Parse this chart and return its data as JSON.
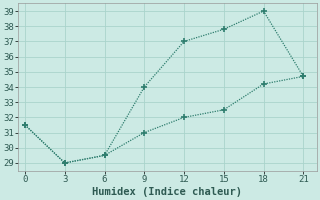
{
  "line1_x": [
    0,
    3,
    6,
    9,
    12,
    15,
    18,
    21
  ],
  "line1_y": [
    31.5,
    29.0,
    29.5,
    34.0,
    37.0,
    37.8,
    39.0,
    34.7
  ],
  "line2_x": [
    0,
    3,
    6,
    9,
    12,
    15,
    18,
    21
  ],
  "line2_y": [
    31.5,
    29.0,
    29.5,
    31.0,
    32.0,
    32.5,
    34.2,
    34.7
  ],
  "line_color": "#2e7d6e",
  "marker": "+",
  "marker_size": 4,
  "marker_lw": 1.2,
  "linewidth": 0.9,
  "xlabel": "Humidex (Indice chaleur)",
  "xlim": [
    -0.5,
    22
  ],
  "ylim": [
    28.5,
    39.5
  ],
  "xticks": [
    0,
    3,
    6,
    9,
    12,
    15,
    18,
    21
  ],
  "yticks": [
    29,
    30,
    31,
    32,
    33,
    34,
    35,
    36,
    37,
    38,
    39
  ],
  "bg_color": "#cceae4",
  "grid_color": "#aad4cc",
  "tick_fontsize": 6.5,
  "xlabel_fontsize": 7.5
}
